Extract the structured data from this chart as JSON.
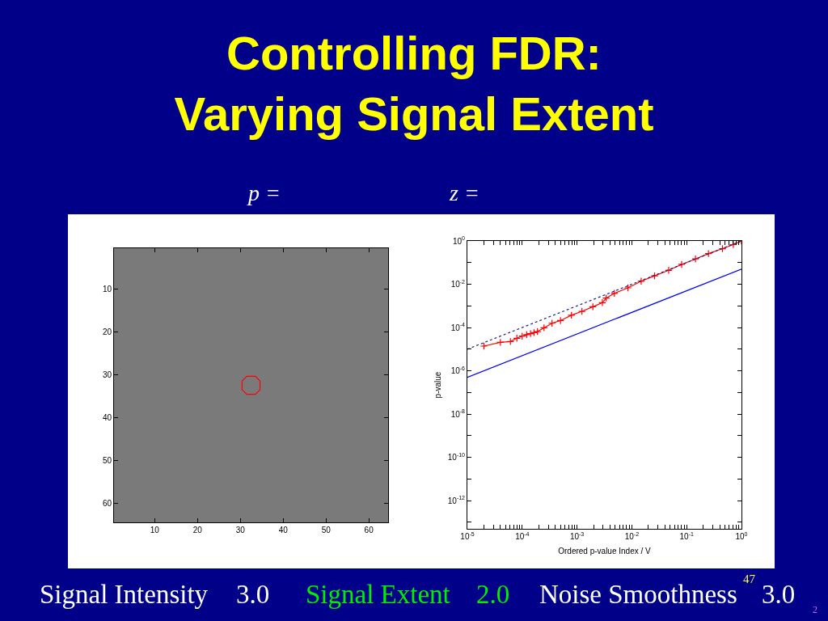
{
  "chart_data": [
    {
      "type": "line",
      "title": "Controlling FDR:\nVarying Signal Extent",
      "annotations": [
        "p =",
        "Signal Intensity",
        "3.0",
        "Signal Extent",
        "2.0",
        "Noise Smoothness",
        "47",
        "3.0",
        "2"
      ],
      "series": [
        {
          "color": "#ff0000",
          "marker": "none",
          "line_style": "solid",
          "x": [
            30.4,
            31.5,
            33.5,
            34.6,
            34.6
          ],
          "values": [
            31.5,
            30.4,
            30.4,
            31.5,
            33.5
          ]
        },
        {
          "color": "#ff0000",
          "marker": "none",
          "line_style": "solid",
          "x": [
            34.6,
            33.5,
            31.5,
            30.4,
            30.4
          ],
          "values": [
            33.5,
            34.6,
            34.6,
            33.5,
            31.5
          ]
        }
      ],
      "xlim": [
        0.5,
        64.5
      ],
      "ylim": [
        64.5,
        0.5
      ],
      "xticks": [
        10,
        20,
        30,
        40,
        50,
        60
      ],
      "yticks": [
        10,
        20,
        30,
        40,
        50,
        60
      ]
    },
    {
      "type": "line",
      "annotations": [
        "z ="
      ],
      "xlabel": "Ordered p-value Index / V",
      "ylabel": "p-value",
      "log": "xy",
      "series": [
        {
          "color": "#ff0000",
          "marker": "cross",
          "line_style": "solid",
          "x": [
            2e-05,
            4e-05,
            6.1e-05,
            8e-05,
            0.0001,
            0.000121,
            0.000142,
            0.000164,
            0.00019,
            0.00025,
            0.00035,
            0.0005,
            0.00079,
            0.00123,
            0.00195,
            0.0029,
            0.0034,
            0.0048,
            0.0085,
            0.0148,
            0.026,
            0.047,
            0.081,
            0.145,
            0.25,
            0.45,
            0.71,
            1
          ],
          "values": [
            1.39e-05,
            2.07e-05,
            2.25e-05,
            3.2e-05,
            4e-05,
            4.7e-05,
            5.2e-05,
            5.8e-05,
            6.5e-05,
            9.7e-05,
            0.000158,
            0.00021,
            0.00037,
            0.00056,
            0.00091,
            0.00141,
            0.0023,
            0.0038,
            0.0068,
            0.0138,
            0.0245,
            0.044,
            0.083,
            0.148,
            0.26,
            0.44,
            0.68,
            1
          ]
        },
        {
          "color": "#0000ff",
          "marker": "none",
          "line_style": "solid",
          "x": [
            1e-05,
            1
          ],
          "values": [
            5e-07,
            0.05
          ]
        },
        {
          "color": "#202080",
          "marker": "none",
          "line_style": "dotted",
          "x": [
            1e-05,
            1
          ],
          "values": [
            1e-05,
            1
          ]
        }
      ],
      "xlim": [
        1e-05,
        1
      ],
      "ylim": [
        5e-14,
        1
      ],
      "xticks": [
        {
          "value": 1e-05,
          "label": "10$^{-5}$"
        },
        {
          "value": 2e-05,
          "label": null
        },
        {
          "value": 3e-05,
          "label": null
        },
        {
          "value": 4e-05,
          "label": null
        },
        {
          "value": 5e-05,
          "label": null
        },
        {
          "value": 6e-05,
          "label": null
        },
        {
          "value": 7e-05,
          "label": null
        },
        {
          "value": 8e-05,
          "label": null
        },
        {
          "value": 9e-05,
          "label": null
        },
        {
          "value": 0.0001,
          "label": "10$^{-4}$"
        },
        {
          "value": 0.0002,
          "label": null
        },
        {
          "value": 0.0003,
          "label": null
        },
        {
          "value": 0.0004,
          "label": null
        },
        {
          "value": 0.0005,
          "label": null
        },
        {
          "value": 0.0006,
          "label": null
        },
        {
          "value": 0.0007,
          "label": null
        },
        {
          "value": 0.0008,
          "label": null
        },
        {
          "value": 0.0009,
          "label": null
        },
        {
          "value": 0.001,
          "label": "10$^{-3}$"
        },
        {
          "value": 0.002,
          "label": null
        },
        {
          "value": 0.003,
          "label": null
        },
        {
          "value": 0.004,
          "label": null
        },
        {
          "value": 0.005,
          "label": null
        },
        {
          "value": 0.006,
          "label": null
        },
        {
          "value": 0.007,
          "label": null
        },
        {
          "value": 0.008,
          "label": null
        },
        {
          "value": 0.009,
          "label": null
        },
        {
          "value": 0.01,
          "label": "10$^{-2}$"
        },
        {
          "value": 0.02,
          "label": null
        },
        {
          "value": 0.03,
          "label": null
        },
        {
          "value": 0.04,
          "label": null
        },
        {
          "value": 0.05,
          "label": null
        },
        {
          "value": 0.06,
          "label": null
        },
        {
          "value": 0.07,
          "label": null
        },
        {
          "value": 0.08,
          "label": null
        },
        {
          "value": 0.09,
          "label": null
        },
        {
          "value": 0.1,
          "label": "10$^{-1}$"
        },
        {
          "value": 0.2,
          "label": null
        },
        {
          "value": 0.3,
          "label": null
        },
        {
          "value": 0.4,
          "label": null
        },
        {
          "value": 0.5,
          "label": null
        },
        {
          "value": 0.6,
          "label": null
        },
        {
          "value": 0.7,
          "label": null
        },
        {
          "value": 0.8,
          "label": null
        },
        {
          "value": 0.9,
          "label": null
        },
        {
          "value": 1,
          "label": "10$^{0}$"
        }
      ],
      "yticks": [
        {
          "value": 1,
          "label": "10$^{0}$"
        },
        {
          "value": 0.1,
          "label": null
        },
        {
          "value": 0.01,
          "label": "10$^{-2}$"
        },
        {
          "value": 0.001,
          "label": null
        },
        {
          "value": 0.0001,
          "label": "10$^{-4}$"
        },
        {
          "value": 1e-05,
          "label": null
        },
        {
          "value": 1e-06,
          "label": "10$^{-6}$"
        },
        {
          "value": 1e-07,
          "label": null
        },
        {
          "value": 1e-08,
          "label": "10$^{-8}$"
        },
        {
          "value": 1e-09,
          "label": null
        },
        {
          "value": 1e-10,
          "label": "10$^{-10}$"
        },
        {
          "value": 1e-11,
          "label": null
        },
        {
          "value": 1e-12,
          "label": "10$^{-12}$"
        },
        {
          "value": 1e-13,
          "label": null
        }
      ]
    }
  ]
}
